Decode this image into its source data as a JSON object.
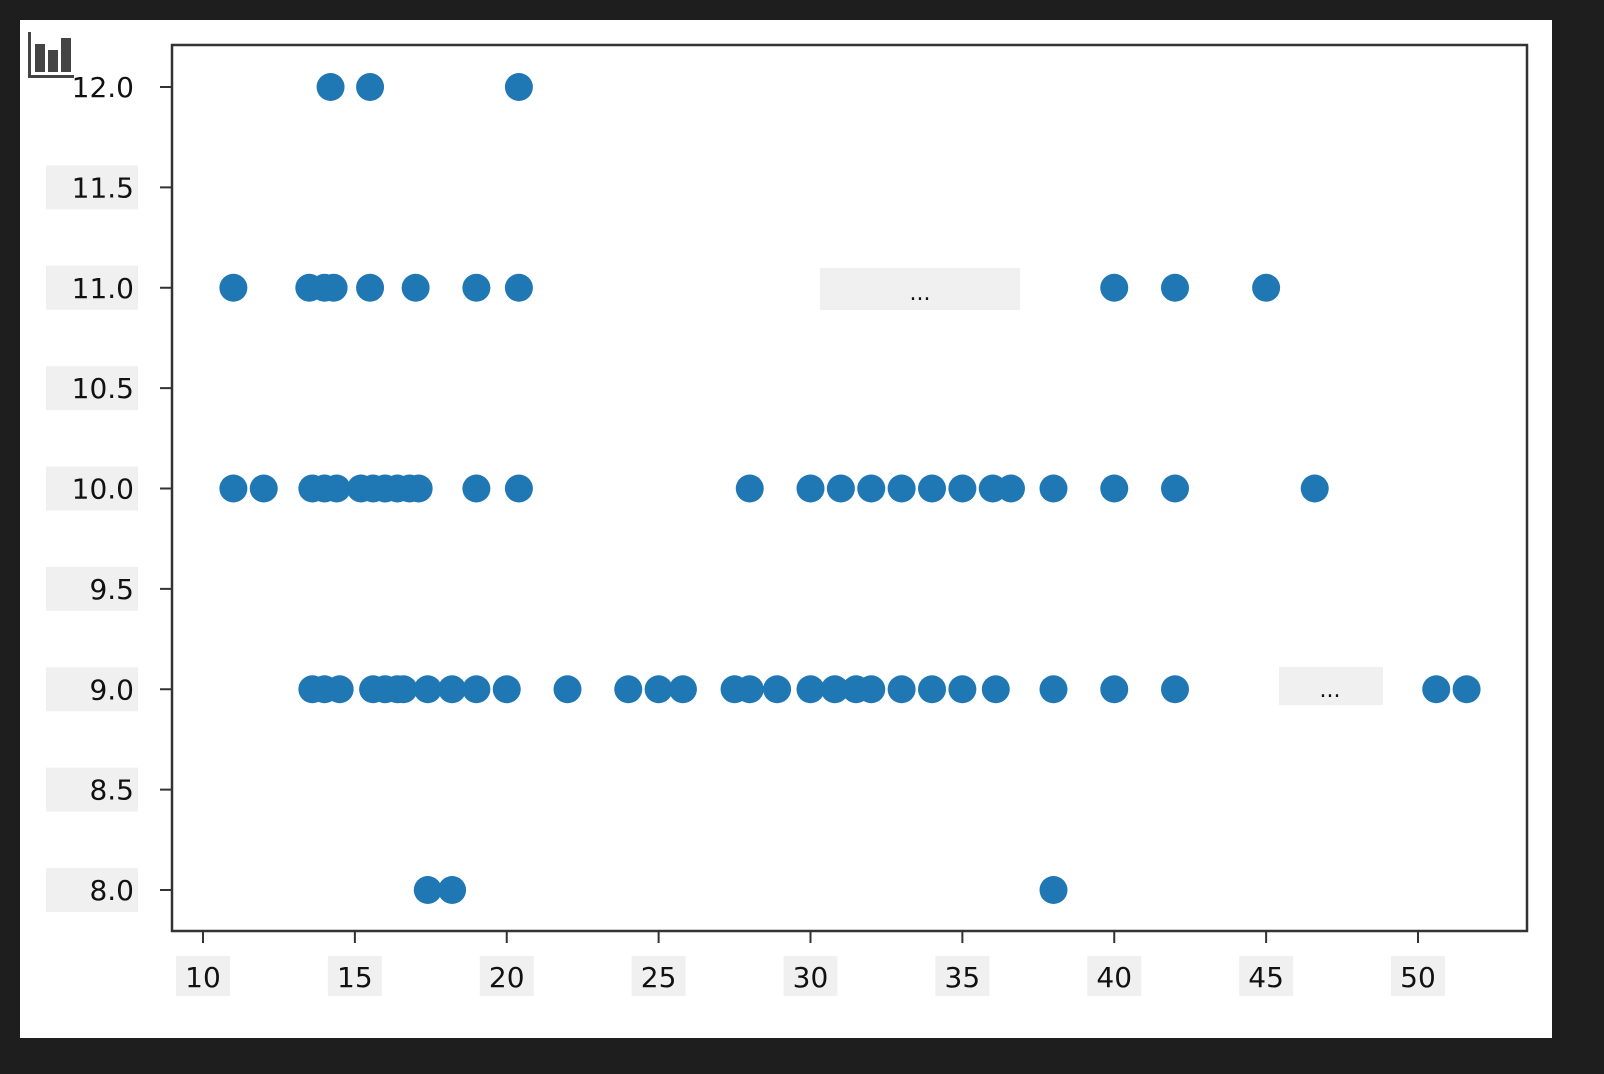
{
  "chart_data": {
    "type": "scatter",
    "title": "",
    "xlabel": "",
    "ylabel": "",
    "xlim": [
      9,
      54.5
    ],
    "ylim": [
      7.8,
      12.2
    ],
    "grid": false,
    "marker_color": "#1f77b4",
    "x_ticks": [
      "10",
      "15",
      "20",
      "25",
      "30",
      "35",
      "40",
      "45",
      "50"
    ],
    "y_ticks": [
      "8.0",
      "8.5",
      "9.0",
      "9.5",
      "10.0",
      "10.5",
      "11.0",
      "11.5",
      "12.0"
    ],
    "annotations": [
      "...",
      "..."
    ],
    "points": [
      {
        "y": 12,
        "x": [
          14.2,
          15.5,
          20.4
        ]
      },
      {
        "y": 11,
        "x": [
          11,
          13.5,
          14,
          14.3,
          15.5,
          17,
          19,
          20.4,
          40,
          42,
          45
        ]
      },
      {
        "y": 10,
        "x": [
          11,
          12,
          13.6,
          14,
          14.4,
          15.2,
          15.6,
          16,
          16.4,
          16.8,
          17.1,
          19,
          20.4,
          28,
          30,
          31,
          32,
          33,
          34,
          35,
          36,
          36.6,
          38,
          40,
          42,
          46.6
        ]
      },
      {
        "y": 9,
        "x": [
          13.6,
          14,
          14.5,
          15.6,
          16,
          16.4,
          16.6,
          17.4,
          18.2,
          19,
          20,
          22,
          24,
          25,
          25.8,
          27.5,
          28,
          28.9,
          30,
          30.8,
          31.5,
          32,
          33,
          34,
          35,
          36.1,
          38,
          40,
          42,
          50.6,
          51.6
        ]
      },
      {
        "y": 8,
        "x": [
          17.4,
          18.2,
          38
        ]
      }
    ]
  },
  "toolbar": {
    "icon": "bar-chart-icon"
  }
}
